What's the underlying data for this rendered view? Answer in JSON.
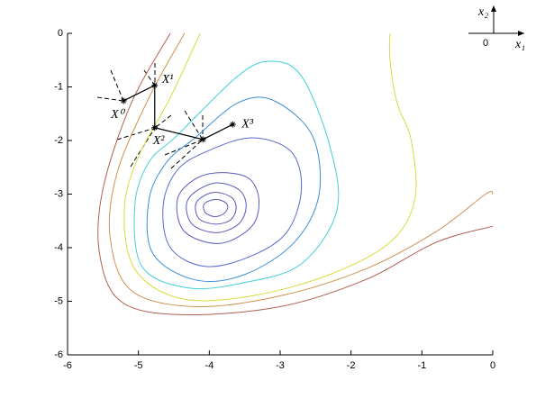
{
  "chart_data": {
    "type": "contour",
    "xlim": [
      -6,
      0
    ],
    "ylim": [
      -6,
      0
    ],
    "xticks": [
      -6,
      -5,
      -4,
      -3,
      -2,
      -1,
      0
    ],
    "yticks": [
      0,
      -1,
      -2,
      -3,
      -4,
      -5,
      -6
    ],
    "contours": [
      {
        "color": "#5a5ab8",
        "closed": true,
        "x": [
          -3.92,
          -3.78,
          -3.74,
          -3.8,
          -3.93,
          -4.06,
          -4.07
        ],
        "y": [
          -3.1,
          -3.15,
          -3.25,
          -3.37,
          -3.42,
          -3.34,
          -3.18
        ]
      },
      {
        "color": "#5a5ab8",
        "closed": true,
        "x": [
          -3.95,
          -3.7,
          -3.62,
          -3.7,
          -3.92,
          -4.15,
          -4.18
        ],
        "y": [
          -2.97,
          -3.05,
          -3.25,
          -3.48,
          -3.56,
          -3.45,
          -3.15
        ]
      },
      {
        "color": "#5a5ab8",
        "closed": true,
        "x": [
          -3.95,
          -3.6,
          -3.48,
          -3.58,
          -3.9,
          -4.25,
          -4.3
        ],
        "y": [
          -2.8,
          -2.9,
          -3.2,
          -3.55,
          -3.72,
          -3.55,
          -3.1
        ]
      },
      {
        "color": "#5a5abf",
        "closed": true,
        "x": [
          -3.85,
          -3.45,
          -3.3,
          -3.4,
          -3.85,
          -4.35,
          -4.45,
          -4.2
        ],
        "y": [
          -2.6,
          -2.7,
          -3.1,
          -3.6,
          -3.92,
          -3.7,
          -3.1,
          -2.72
        ]
      },
      {
        "color": "#5a6ad0",
        "closed": true,
        "x": [
          -4.03,
          -3.4,
          -2.85,
          -2.7,
          -2.9,
          -3.4,
          -4.05,
          -4.55,
          -4.65,
          -4.45
        ],
        "y": [
          -2.2,
          -1.95,
          -2.2,
          -2.9,
          -3.7,
          -4.15,
          -4.35,
          -4.0,
          -3.2,
          -2.55
        ]
      },
      {
        "color": "#3a8fd8",
        "closed": true,
        "x": [
          -4.2,
          -3.6,
          -3.1,
          -2.55,
          -2.45,
          -2.8,
          -3.5,
          -4.2,
          -4.8,
          -4.85,
          -4.6
        ],
        "y": [
          -1.95,
          -1.3,
          -1.25,
          -1.9,
          -3.0,
          -3.9,
          -4.5,
          -4.6,
          -4.1,
          -3.1,
          -2.4
        ]
      },
      {
        "color": "#40d0d8",
        "closed": true,
        "x": [
          -4.45,
          -3.6,
          -3.14,
          -2.7,
          -2.3,
          -2.2,
          -2.7,
          -3.5,
          -4.3,
          -4.95,
          -5.05,
          -4.85
        ],
        "y": [
          -1.9,
          -0.8,
          -0.52,
          -0.8,
          -2.1,
          -3.3,
          -4.3,
          -4.65,
          -4.75,
          -4.35,
          -3.2,
          -2.4
        ]
      },
      {
        "color": "#dada40",
        "closed": false,
        "x": [
          -4.13,
          -4.55,
          -5.0,
          -5.2,
          -5.05,
          -4.4,
          -3.4,
          -2.3,
          -1.45,
          -1.1,
          -1.15,
          -1.35,
          -1.45,
          -1.45
        ],
        "y": [
          0,
          -1.2,
          -2.3,
          -3.3,
          -4.4,
          -4.95,
          -4.9,
          -4.5,
          -3.9,
          -3.1,
          -2.0,
          -1.3,
          -0.5,
          0
        ]
      },
      {
        "color": "#d09050",
        "closed": false,
        "x": [
          -4.35,
          -4.85,
          -5.3,
          -5.4,
          -5.1,
          -4.2,
          -3.0,
          -1.8,
          -0.8,
          -0.1,
          0
        ],
        "y": [
          0,
          -1.2,
          -2.6,
          -3.8,
          -4.8,
          -5.1,
          -4.9,
          -4.4,
          -3.7,
          -3.0,
          -3.0
        ]
      },
      {
        "color": "#b06050",
        "closed": false,
        "x": [
          -4.55,
          -5.1,
          -5.5,
          -5.55,
          -5.25,
          -4.4,
          -3.0,
          -1.8,
          -0.8,
          0
        ],
        "y": [
          0,
          -1.3,
          -2.9,
          -4.1,
          -5.0,
          -5.25,
          -5.1,
          -4.6,
          -3.9,
          -3.6
        ]
      }
    ],
    "path": {
      "x": [
        -5.21,
        -4.77,
        -4.77,
        -4.09,
        -3.67
      ],
      "y": [
        -1.26,
        -0.97,
        -1.76,
        -1.98,
        -1.7
      ],
      "labels": [
        "X⁰",
        "X¹",
        "X²",
        null,
        "X³"
      ]
    },
    "axis_indicator": {
      "x_label": "x₁",
      "y_label": "x₂",
      "origin": "0"
    }
  }
}
